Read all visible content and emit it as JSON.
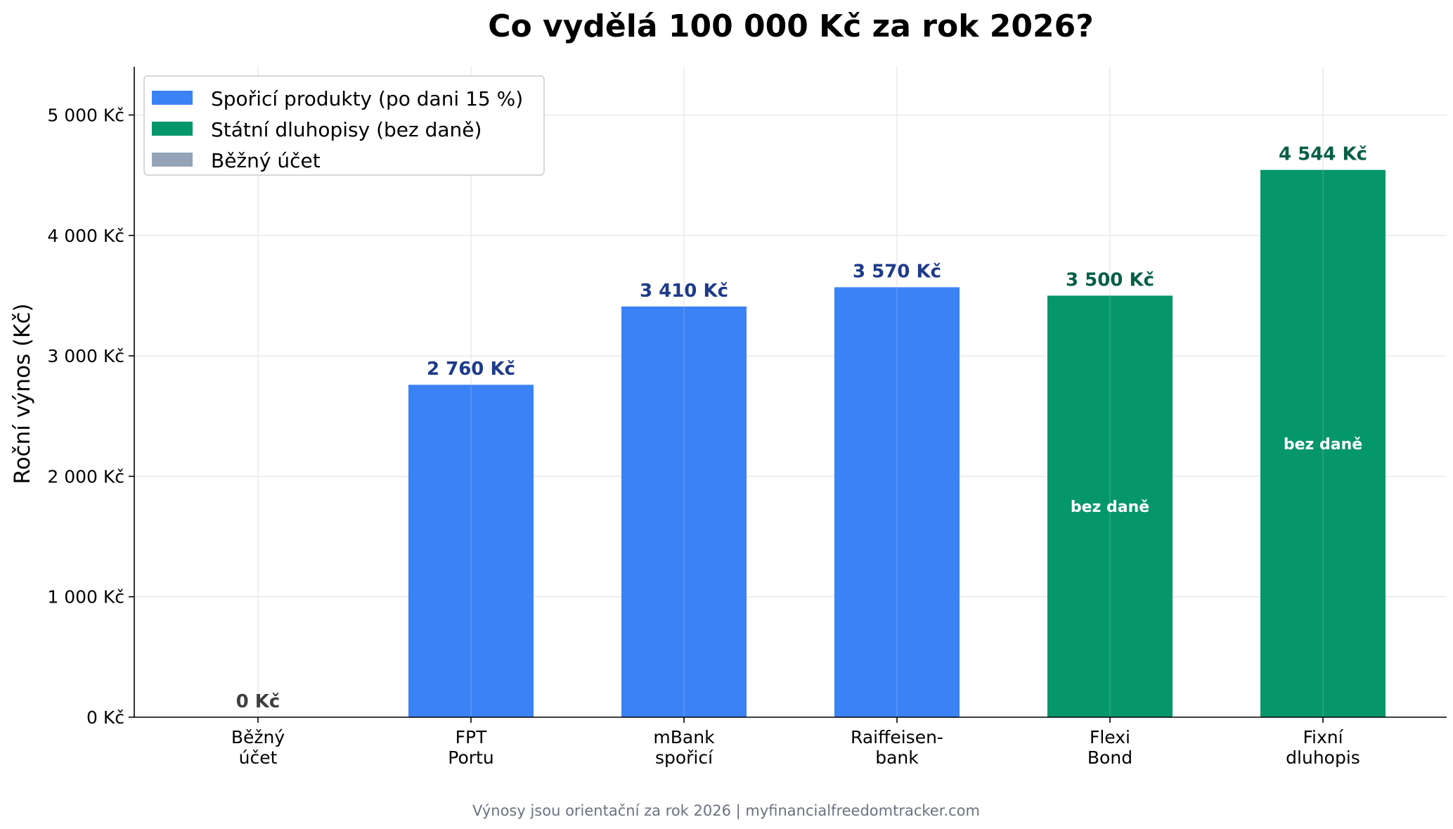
{
  "chart_data": {
    "type": "bar",
    "title": "Co vydělá 100 000 Kč za rok 2026?",
    "ylabel": "Roční výnos (Kč)",
    "xlabel": "",
    "ylim": [
      0,
      5400
    ],
    "yticks": [
      0,
      1000,
      2000,
      3000,
      4000,
      5000
    ],
    "ytick_labels": [
      "0 Kč",
      "1 000 Kč",
      "2 000 Kč",
      "3 000 Kč",
      "4 000 Kč",
      "5 000 Kč"
    ],
    "grid": true,
    "legend_position": "top-left",
    "legend": [
      {
        "label": "Spořicí produkty (po dani 15 %)",
        "color": "#3b82f6"
      },
      {
        "label": "Státní dluhopisy (bez daně)",
        "color": "#059669"
      },
      {
        "label": "Běžný účet",
        "color": "#94a3b8"
      }
    ],
    "categories": [
      [
        "Běžný",
        "účet"
      ],
      [
        "FPT",
        "Portu"
      ],
      [
        "mBank",
        "spořicí"
      ],
      [
        "Raiffeisen-",
        "bank"
      ],
      [
        "Flexi",
        "Bond"
      ],
      [
        "Fixní",
        "dluhopis"
      ]
    ],
    "values": [
      0,
      2760,
      3410,
      3570,
      3500,
      4544
    ],
    "value_labels": [
      "0 Kč",
      "2 760 Kč",
      "3 410 Kč",
      "3 570 Kč",
      "3 500 Kč",
      "4 544 Kč"
    ],
    "bar_colors": [
      "#94a3b8",
      "#3b82f6",
      "#3b82f6",
      "#3b82f6",
      "#059669",
      "#059669"
    ],
    "label_colors": [
      "#404040",
      "#1e3a8a",
      "#1e3a8a",
      "#1e3a8a",
      "#065f46",
      "#065f46"
    ],
    "inner_labels": [
      "",
      "",
      "",
      "",
      "bez daně",
      "bez daně"
    ]
  },
  "footnote": "Výnosy jsou orientační za rok 2026 | myfinancialfreedomtracker.com"
}
